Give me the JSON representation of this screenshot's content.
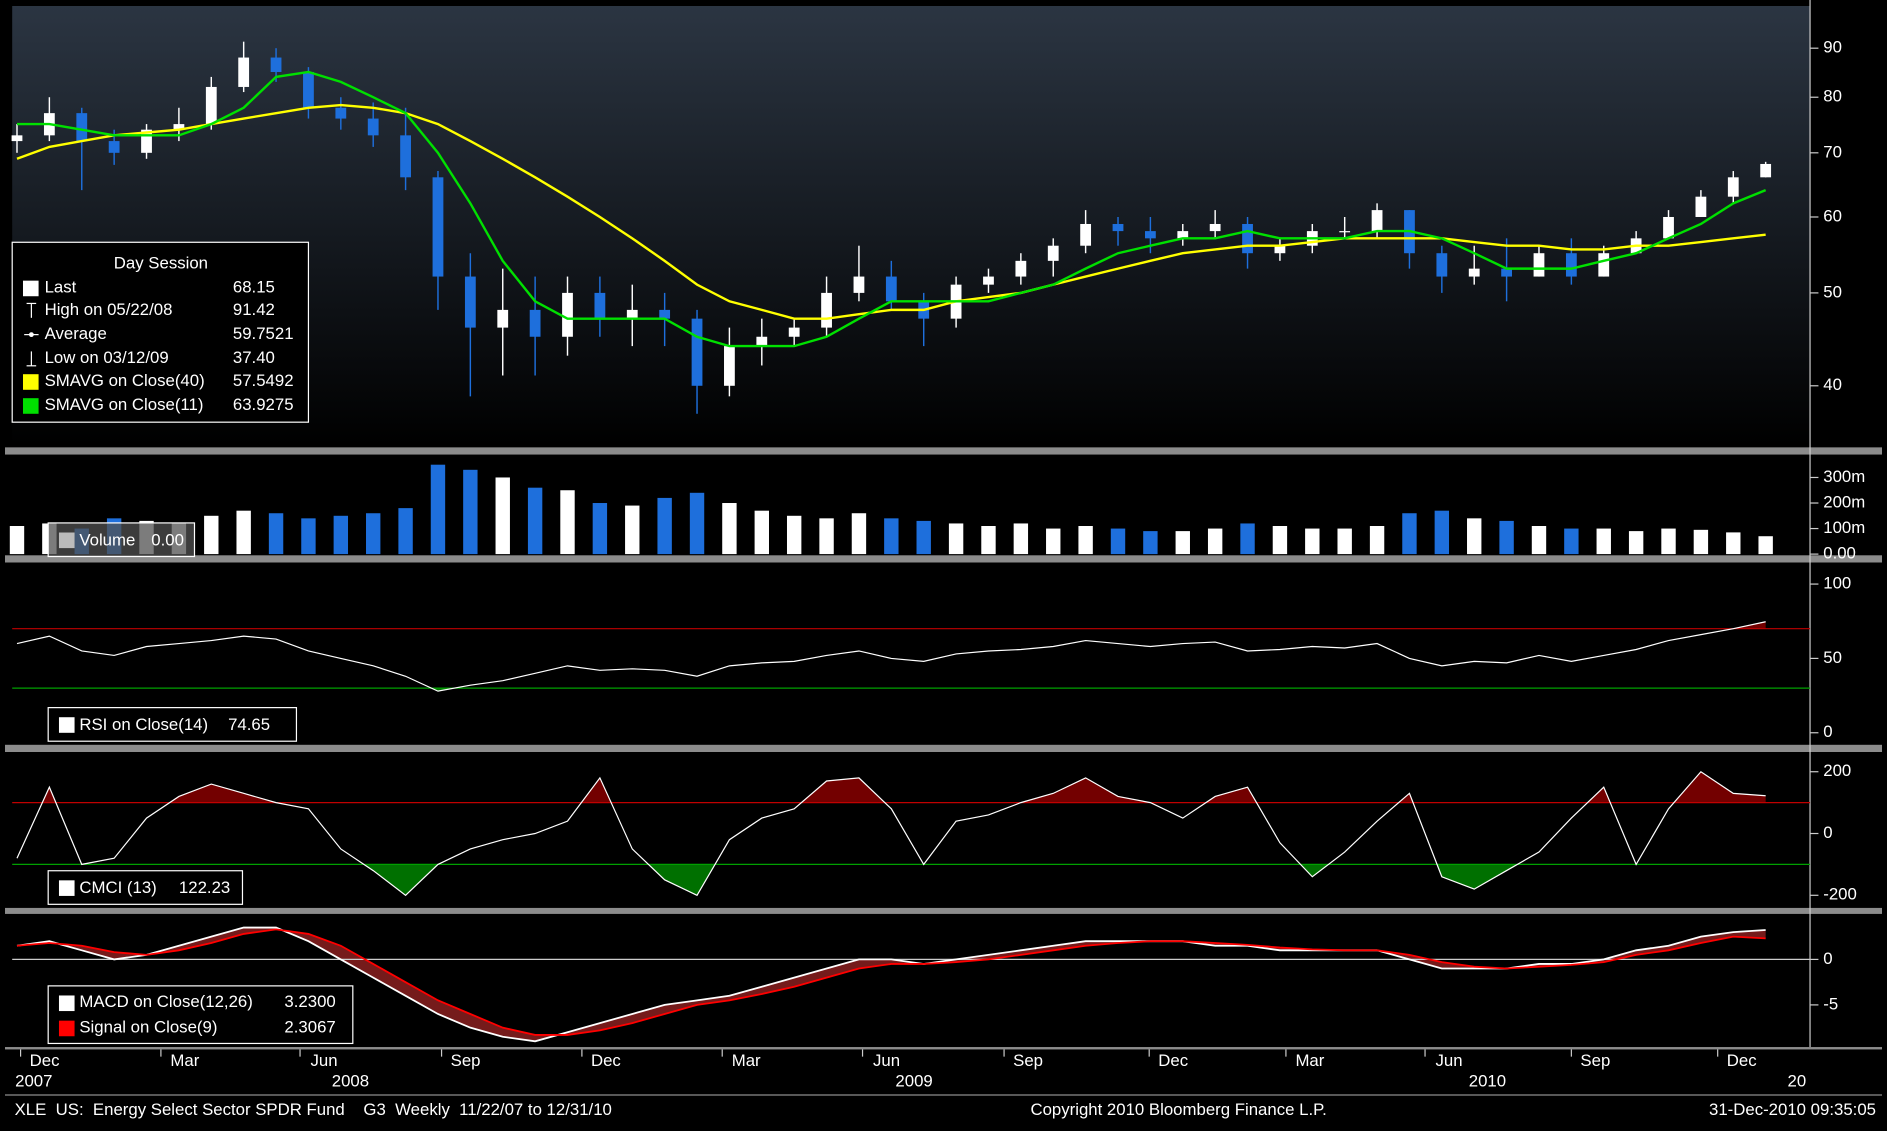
{
  "chart_data": [
    {
      "type": "candlestick",
      "legend_title": "Day Session",
      "legend": [
        {
          "name": "Last",
          "value": "68.15"
        },
        {
          "name": "High on 05/22/08",
          "value": "91.42"
        },
        {
          "name": "Average",
          "value": "59.7521"
        },
        {
          "name": "Low on 03/12/09",
          "value": "37.40"
        }
      ],
      "open": [
        72,
        73,
        77,
        72,
        70,
        74,
        75,
        82,
        88,
        85,
        78,
        76,
        73,
        66,
        52,
        46,
        48,
        45,
        50,
        47,
        48,
        47,
        40,
        44,
        45,
        46,
        50,
        52,
        49,
        47,
        51,
        52,
        54,
        56,
        59,
        58,
        57,
        58,
        59,
        55,
        56,
        58,
        58,
        61,
        55,
        52,
        53,
        52,
        55,
        52,
        55,
        57,
        60,
        63,
        66
      ],
      "high": [
        75,
        80,
        78,
        74,
        75,
        78,
        84,
        91.42,
        90,
        86,
        80,
        79,
        78,
        67,
        55,
        53,
        52,
        52,
        52,
        51,
        50,
        48,
        46,
        47,
        47,
        52,
        56,
        54,
        50,
        52,
        53,
        55,
        57,
        61,
        60,
        60,
        59,
        61,
        60,
        57,
        59,
        60,
        62,
        61,
        56,
        56,
        57,
        56,
        57,
        56,
        58,
        61,
        64,
        67,
        68.5
      ],
      "low": [
        70,
        72,
        64,
        68,
        69,
        72,
        74,
        81,
        83,
        76,
        74,
        71,
        64,
        48,
        39,
        41,
        41,
        43,
        45,
        44,
        44,
        37.4,
        39,
        42,
        44,
        45,
        49,
        48,
        44,
        46,
        50,
        51,
        52,
        55,
        56,
        55,
        56,
        57,
        53,
        54,
        55,
        57,
        57,
        53,
        50,
        51,
        49,
        52,
        51,
        52,
        55,
        57,
        60,
        62,
        66
      ],
      "close": [
        73,
        77,
        72,
        70,
        74,
        75,
        82,
        88,
        85,
        78,
        76,
        73,
        66,
        52,
        46,
        48,
        45,
        50,
        47,
        48,
        47,
        40,
        44,
        45,
        46,
        50,
        52,
        49,
        47,
        51,
        52,
        54,
        56,
        59,
        58,
        57,
        58,
        59,
        55,
        56,
        58,
        58,
        61,
        55,
        52,
        53,
        52,
        55,
        52,
        55,
        57,
        60,
        63,
        66,
        68.15
      ],
      "up_color": "#ffffff",
      "down_color": "#1e6fdc",
      "series": [
        {
          "name": "SMAVG on Close(40)",
          "last": "57.5492",
          "color": "#ffff00",
          "values": [
            69,
            71,
            72,
            73,
            73.5,
            74,
            75,
            76,
            77,
            78,
            78.5,
            78,
            77,
            75,
            72,
            69,
            66,
            63,
            60,
            57,
            54,
            51,
            49,
            48,
            47,
            47,
            47.5,
            48,
            48,
            49,
            49.5,
            50,
            51,
            52,
            53,
            54,
            55,
            55.5,
            56,
            56,
            56.5,
            57,
            57,
            57,
            57,
            56.5,
            56,
            56,
            55.5,
            55.5,
            56,
            56,
            56.5,
            57,
            57.5
          ]
        },
        {
          "name": "SMAVG on Close(11)",
          "last": "63.9275",
          "color": "#00e000",
          "values": [
            75,
            75,
            74,
            73,
            73,
            73,
            75,
            78,
            84,
            85,
            83,
            80,
            77,
            70,
            62,
            54,
            49,
            47,
            47,
            47,
            47,
            45,
            44,
            44,
            44,
            45,
            47,
            49,
            49,
            49,
            49,
            50,
            51,
            53,
            55,
            56,
            57,
            57,
            58,
            57,
            57,
            57,
            58,
            58,
            57,
            55,
            53,
            53,
            53,
            54,
            55,
            57,
            59,
            62,
            64
          ]
        }
      ],
      "ylim": [
        34.6,
        99.6
      ],
      "yticks": [
        40,
        50,
        60,
        70,
        80,
        90
      ],
      "log_scale": true
    },
    {
      "type": "bar",
      "name": "Volume",
      "last": "0.00",
      "values": [
        110,
        120,
        100,
        140,
        130,
        120,
        150,
        170,
        160,
        140,
        150,
        160,
        180,
        350,
        330,
        300,
        260,
        250,
        200,
        190,
        220,
        240,
        200,
        170,
        150,
        140,
        160,
        140,
        130,
        120,
        110,
        120,
        100,
        110,
        100,
        90,
        90,
        100,
        120,
        110,
        100,
        100,
        110,
        160,
        170,
        140,
        130,
        110,
        100,
        100,
        90,
        100,
        95,
        85,
        70
      ],
      "ylim": [
        0,
        385
      ],
      "yticks": [
        {
          "value": 0,
          "label": "0.00"
        },
        {
          "value": 100,
          "label": "100m"
        },
        {
          "value": 200,
          "label": "200m"
        },
        {
          "value": 300,
          "label": "300m"
        }
      ]
    },
    {
      "type": "line",
      "name": "RSI on Close(14)",
      "last": "74.65",
      "color": "#ffffff",
      "values": [
        60,
        65,
        55,
        52,
        58,
        60,
        62,
        65,
        63,
        55,
        50,
        45,
        38,
        28,
        32,
        35,
        40,
        45,
        42,
        43,
        42,
        38,
        45,
        47,
        48,
        52,
        55,
        50,
        48,
        53,
        55,
        56,
        58,
        62,
        60,
        58,
        60,
        61,
        55,
        56,
        58,
        57,
        60,
        50,
        45,
        48,
        47,
        52,
        48,
        52,
        56,
        62,
        66,
        70,
        74.65
      ],
      "ylim": [
        -7.3,
        113.7
      ],
      "yticks": [
        0,
        50,
        100
      ],
      "upper": 70,
      "lower": 30,
      "upper_color": "#c00000",
      "lower_color": "#00a000"
    },
    {
      "type": "line",
      "name": "CMCI (13)",
      "last": "122.23",
      "color": "#ffffff",
      "values": [
        -80,
        150,
        -100,
        -80,
        50,
        120,
        160,
        130,
        100,
        80,
        -50,
        -120,
        -200,
        -100,
        -50,
        -20,
        0,
        40,
        180,
        -50,
        -150,
        -200,
        -20,
        50,
        80,
        170,
        180,
        80,
        -100,
        40,
        60,
        100,
        130,
        180,
        120,
        100,
        50,
        120,
        150,
        -30,
        -140,
        -60,
        40,
        130,
        -140,
        -180,
        -120,
        -60,
        50,
        150,
        -100,
        80,
        200,
        130,
        122.23
      ],
      "ylim": [
        -237,
        260
      ],
      "yticks": [
        -200,
        0,
        200
      ],
      "upper": 100,
      "lower": -100,
      "upper_color": "#c00000",
      "lower_color": "#00a000"
    },
    {
      "type": "macd",
      "series": [
        {
          "name": "MACD on Close(12,26)",
          "last": "3.2300",
          "color": "#ffffff",
          "values": [
            1.5,
            2,
            1,
            0,
            0.5,
            1.5,
            2.5,
            3.5,
            3.5,
            2,
            0,
            -2,
            -4,
            -6,
            -7.5,
            -8.5,
            -9,
            -8,
            -7,
            -6,
            -5,
            -4.5,
            -4,
            -3,
            -2,
            -1,
            0,
            0,
            -0.5,
            0,
            0.5,
            1,
            1.5,
            2,
            2,
            2,
            2,
            1.5,
            1.5,
            1,
            1,
            1,
            1,
            0,
            -1,
            -1,
            -1,
            -0.5,
            -0.5,
            0,
            1,
            1.5,
            2.5,
            3,
            3.23
          ]
        },
        {
          "name": "Signal on Close(9)",
          "last": "2.3067",
          "color": "#ff0000",
          "values": [
            1.5,
            1.8,
            1.5,
            0.8,
            0.5,
            1,
            1.8,
            2.8,
            3.3,
            2.8,
            1.5,
            -0.5,
            -2.5,
            -4.5,
            -6,
            -7.5,
            -8.3,
            -8.3,
            -7.8,
            -7,
            -6,
            -5,
            -4.5,
            -3.8,
            -3,
            -2,
            -1,
            -0.5,
            -0.5,
            -0.3,
            0,
            0.5,
            1,
            1.5,
            1.8,
            2,
            2,
            1.8,
            1.6,
            1.3,
            1.1,
            1,
            1,
            0.5,
            -0.3,
            -0.8,
            -1,
            -0.8,
            -0.6,
            -0.3,
            0.5,
            1,
            1.8,
            2.5,
            2.31
          ]
        }
      ],
      "ylim": [
        -9.5,
        5
      ],
      "yticks": [
        -5,
        0
      ]
    }
  ],
  "x_axis": {
    "months": [
      "Dec",
      "Mar",
      "Jun",
      "Sep",
      "Dec",
      "Mar",
      "Jun",
      "Sep",
      "Dec",
      "Mar",
      "Jun",
      "Sep",
      "Dec"
    ],
    "years": [
      "2007",
      "2008",
      "2009",
      "2010",
      "20"
    ]
  },
  "footer": {
    "left": "XLE  US:  Energy Select Sector SPDR Fund    G3  Weekly  11/22/07 to 12/31/10",
    "center": "Copyright 2010 Bloomberg Finance L.P.",
    "right": "31-Dec-2010 09:35:05"
  }
}
